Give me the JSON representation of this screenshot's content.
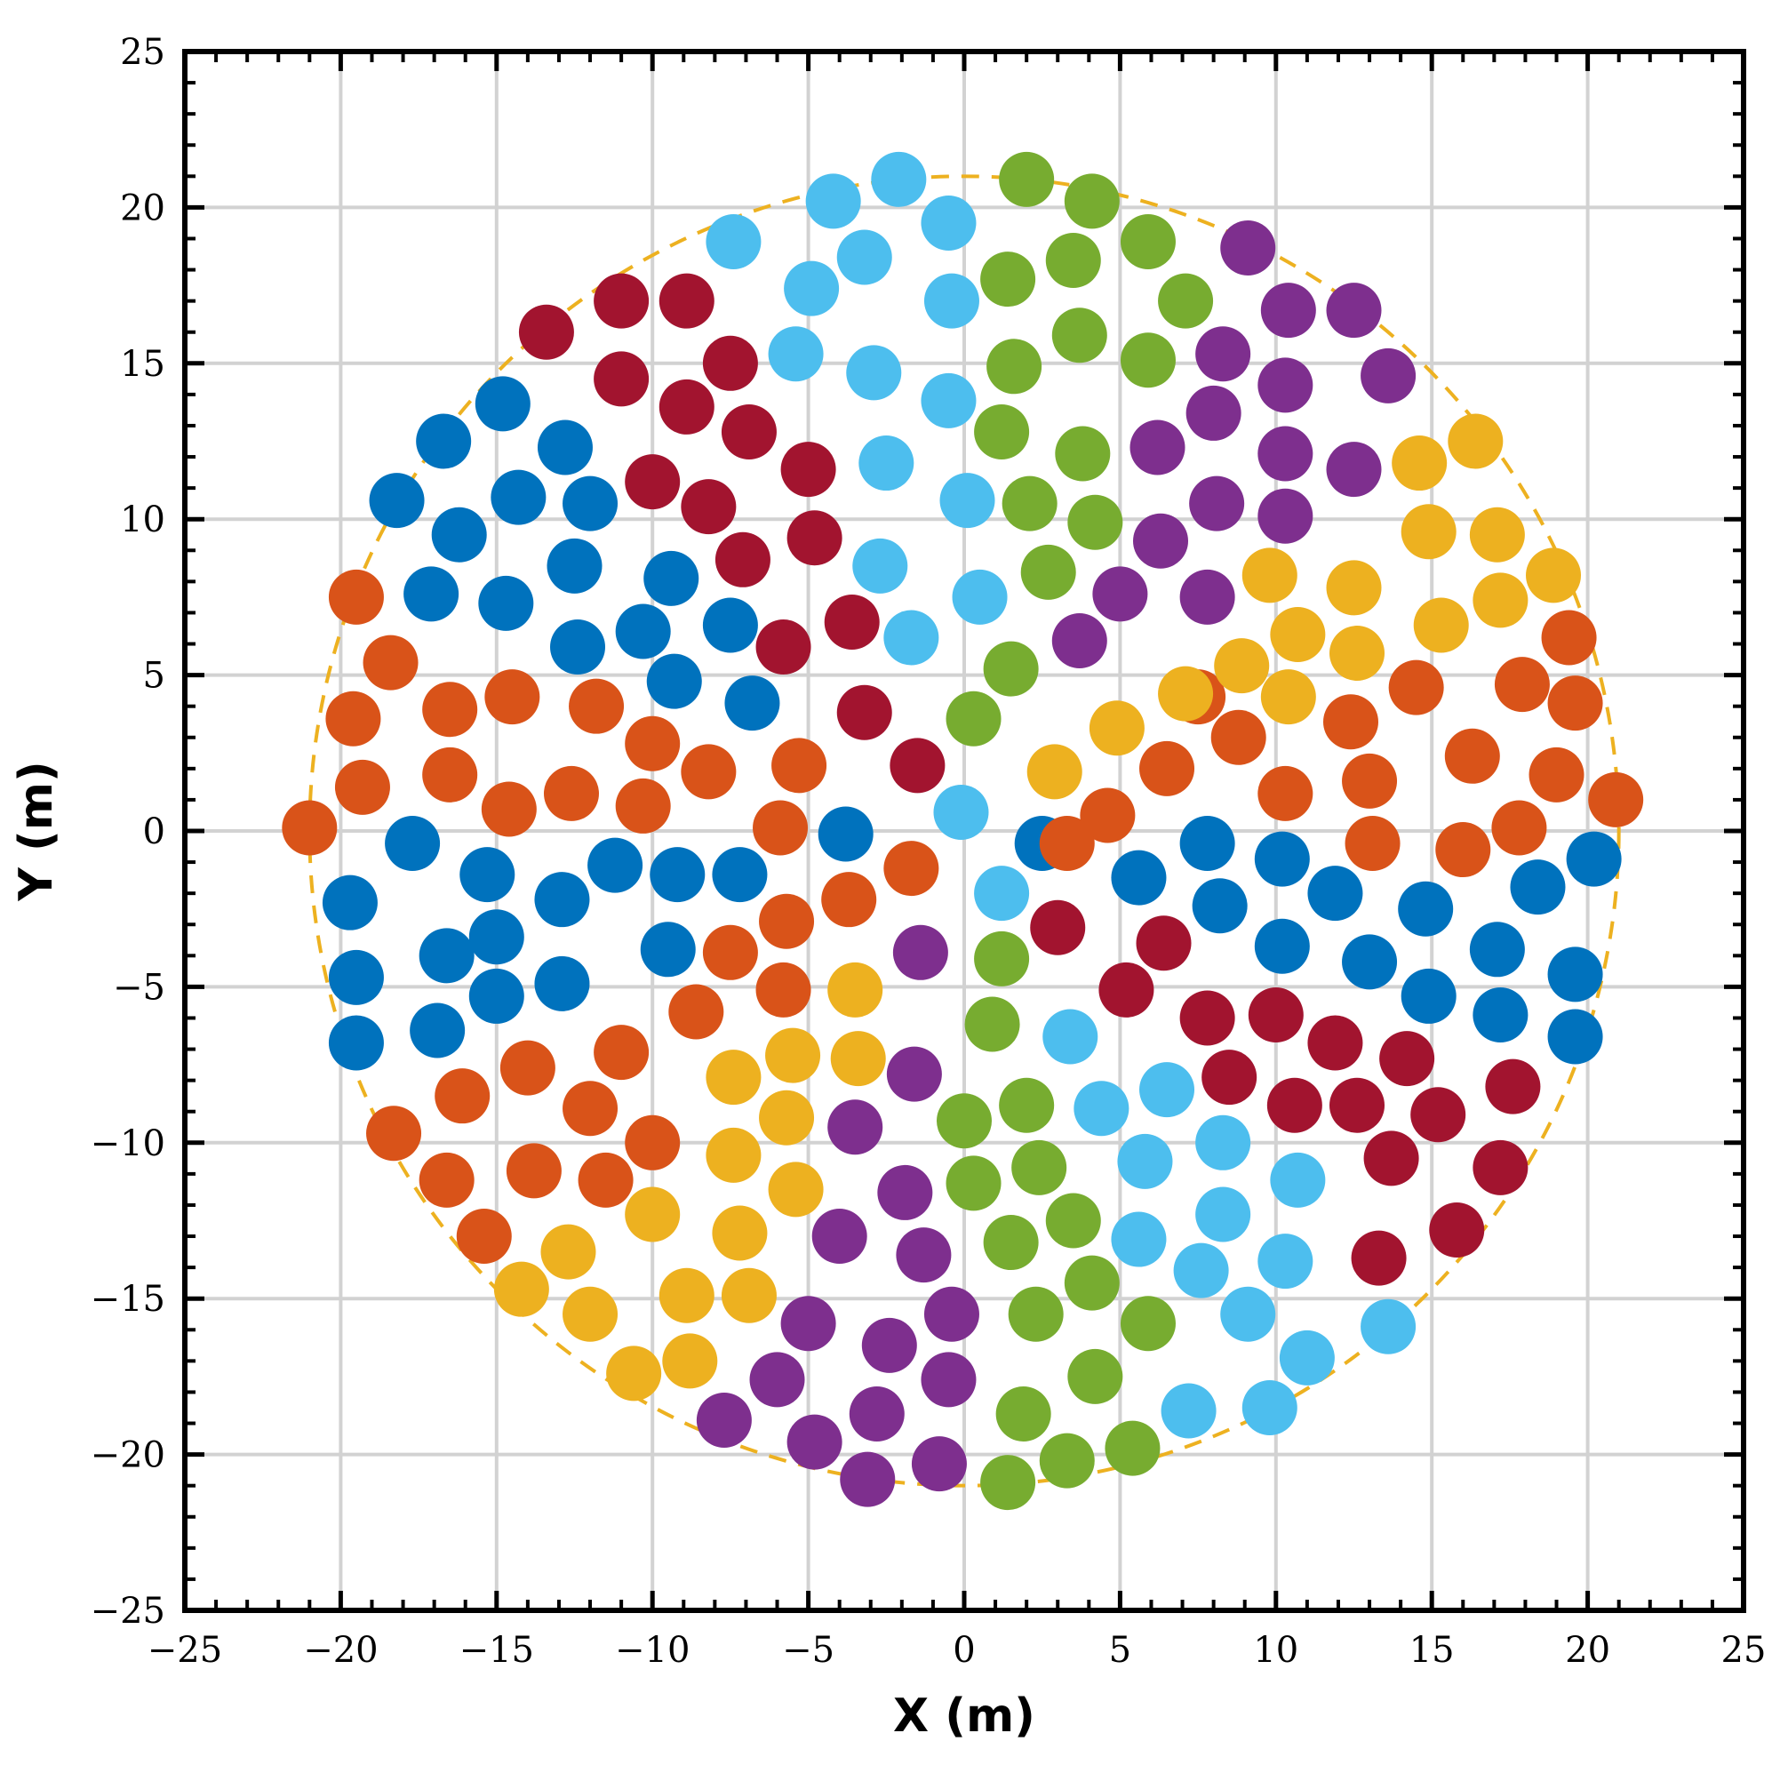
{
  "chart_data": {
    "type": "scatter",
    "title": "",
    "xlabel": "X (m)",
    "ylabel": "Y (m)",
    "xlim": [
      -25,
      25
    ],
    "ylim": [
      -25,
      25
    ],
    "xticks": [
      -25,
      -20,
      -15,
      -10,
      -5,
      0,
      5,
      10,
      15,
      20,
      25
    ],
    "yticks": [
      -25,
      -20,
      -15,
      -10,
      -5,
      0,
      5,
      10,
      15,
      20,
      25
    ],
    "grid": true,
    "legend": "none",
    "boundary": {
      "shape": "circle",
      "center": [
        0,
        0
      ],
      "radius": 21,
      "style": "dashed",
      "color": "#EDB120"
    },
    "series": [
      {
        "color": "#0072BD",
        "points": [
          [
            -18.2,
            10.6
          ],
          [
            -16.7,
            12.5
          ],
          [
            -14.8,
            13.7
          ],
          [
            -12.8,
            12.3
          ],
          [
            -16.2,
            9.5
          ],
          [
            -14.3,
            10.7
          ],
          [
            -12.0,
            10.5
          ],
          [
            -17.1,
            7.6
          ],
          [
            -14.7,
            7.3
          ],
          [
            -12.5,
            8.5
          ],
          [
            -9.4,
            8.1
          ],
          [
            -12.4,
            5.9
          ],
          [
            -10.3,
            6.4
          ],
          [
            -7.5,
            6.6
          ],
          [
            -9.3,
            4.8
          ],
          [
            -6.8,
            4.1
          ],
          [
            -17.7,
            -0.4
          ],
          [
            -15.3,
            -1.4
          ],
          [
            -11.2,
            -1.1
          ],
          [
            -9.2,
            -1.4
          ],
          [
            -7.2,
            -1.4
          ],
          [
            -3.8,
            -0.1
          ],
          [
            -19.7,
            -2.3
          ],
          [
            -15.0,
            -3.4
          ],
          [
            -12.9,
            -2.2
          ],
          [
            -19.5,
            -4.7
          ],
          [
            -16.6,
            -4.0
          ],
          [
            -12.9,
            -4.9
          ],
          [
            -9.5,
            -3.8
          ],
          [
            -19.5,
            -6.8
          ],
          [
            -16.9,
            -6.4
          ],
          [
            -15.0,
            -5.3
          ],
          [
            2.5,
            -0.4
          ],
          [
            5.6,
            -1.5
          ],
          [
            7.8,
            -0.4
          ],
          [
            10.2,
            -0.9
          ],
          [
            8.2,
            -2.4
          ],
          [
            11.9,
            -2.0
          ],
          [
            10.2,
            -3.7
          ],
          [
            13.0,
            -4.2
          ],
          [
            14.8,
            -2.5
          ],
          [
            14.9,
            -5.3
          ],
          [
            17.1,
            -3.8
          ],
          [
            18.4,
            -1.8
          ],
          [
            17.2,
            -5.9
          ],
          [
            19.6,
            -4.6
          ],
          [
            20.2,
            -0.9
          ],
          [
            19.6,
            -6.6
          ]
        ]
      },
      {
        "color": "#D95319",
        "points": [
          [
            -21.0,
            0.1
          ],
          [
            -19.5,
            7.5
          ],
          [
            -18.4,
            5.4
          ],
          [
            -19.6,
            3.6
          ],
          [
            -19.3,
            1.4
          ],
          [
            -16.5,
            3.9
          ],
          [
            -16.5,
            1.8
          ],
          [
            -14.5,
            4.3
          ],
          [
            -14.6,
            0.7
          ],
          [
            -12.6,
            1.2
          ],
          [
            -11.8,
            4.0
          ],
          [
            -10.3,
            0.8
          ],
          [
            -10.0,
            2.8
          ],
          [
            -8.2,
            1.9
          ],
          [
            -5.3,
            2.1
          ],
          [
            -5.9,
            0.1
          ],
          [
            -3.7,
            -2.2
          ],
          [
            -1.7,
            -1.2
          ],
          [
            -5.7,
            -2.9
          ],
          [
            -7.5,
            -3.9
          ],
          [
            -5.8,
            -5.1
          ],
          [
            -8.6,
            -5.8
          ],
          [
            -11.0,
            -7.1
          ],
          [
            -14.0,
            -7.6
          ],
          [
            -16.1,
            -8.5
          ],
          [
            -12.0,
            -8.9
          ],
          [
            -18.3,
            -9.7
          ],
          [
            -16.6,
            -11.2
          ],
          [
            -13.8,
            -10.9
          ],
          [
            -11.5,
            -11.2
          ],
          [
            -10.0,
            -10.0
          ],
          [
            -15.4,
            -13.0
          ],
          [
            4.6,
            0.5
          ],
          [
            3.3,
            -0.4
          ],
          [
            6.5,
            2.0
          ],
          [
            7.5,
            4.3
          ],
          [
            8.8,
            3.0
          ],
          [
            10.3,
            1.2
          ],
          [
            12.4,
            3.5
          ],
          [
            13.0,
            1.6
          ],
          [
            13.1,
            -0.4
          ],
          [
            14.5,
            4.6
          ],
          [
            16.3,
            2.4
          ],
          [
            16.0,
            -0.6
          ],
          [
            17.9,
            4.7
          ],
          [
            19.4,
            6.2
          ],
          [
            19.6,
            4.1
          ],
          [
            19.0,
            1.8
          ],
          [
            17.8,
            0.1
          ],
          [
            20.9,
            1.0
          ]
        ]
      },
      {
        "color": "#EDB120",
        "points": [
          [
            -3.5,
            -5.1
          ],
          [
            -5.5,
            -7.2
          ],
          [
            -3.4,
            -7.3
          ],
          [
            -7.4,
            -7.9
          ],
          [
            -5.7,
            -9.2
          ],
          [
            -7.4,
            -10.4
          ],
          [
            -5.4,
            -11.5
          ],
          [
            -10.0,
            -12.3
          ],
          [
            -7.2,
            -12.9
          ],
          [
            -12.7,
            -13.5
          ],
          [
            -14.2,
            -14.7
          ],
          [
            -8.9,
            -14.9
          ],
          [
            -6.9,
            -14.9
          ],
          [
            -12.0,
            -15.5
          ],
          [
            -8.8,
            -17.0
          ],
          [
            -10.6,
            -17.4
          ],
          [
            2.9,
            1.9
          ],
          [
            4.9,
            3.3
          ],
          [
            7.1,
            4.4
          ],
          [
            8.9,
            5.3
          ],
          [
            9.8,
            8.2
          ],
          [
            10.7,
            6.3
          ],
          [
            10.4,
            4.3
          ],
          [
            12.5,
            7.8
          ],
          [
            12.6,
            5.7
          ],
          [
            14.6,
            11.8
          ],
          [
            14.9,
            9.6
          ],
          [
            15.3,
            6.6
          ],
          [
            16.4,
            12.5
          ],
          [
            17.1,
            9.5
          ],
          [
            17.2,
            7.4
          ],
          [
            18.9,
            8.2
          ]
        ]
      },
      {
        "color": "#7E2F8E",
        "points": [
          [
            9.1,
            18.7
          ],
          [
            10.4,
            16.7
          ],
          [
            12.5,
            16.7
          ],
          [
            8.3,
            15.3
          ],
          [
            10.3,
            14.3
          ],
          [
            13.6,
            14.6
          ],
          [
            8.0,
            13.4
          ],
          [
            6.2,
            12.3
          ],
          [
            10.3,
            12.1
          ],
          [
            12.5,
            11.6
          ],
          [
            8.1,
            10.5
          ],
          [
            10.3,
            10.1
          ],
          [
            6.3,
            9.3
          ],
          [
            5.0,
            7.6
          ],
          [
            7.8,
            7.5
          ],
          [
            3.7,
            6.1
          ],
          [
            -1.4,
            -3.9
          ],
          [
            -1.6,
            -7.8
          ],
          [
            -3.5,
            -9.5
          ],
          [
            -1.9,
            -11.6
          ],
          [
            -4.0,
            -13.0
          ],
          [
            -1.3,
            -13.6
          ],
          [
            -0.4,
            -15.5
          ],
          [
            -5.0,
            -15.8
          ],
          [
            -2.4,
            -16.5
          ],
          [
            -6.0,
            -17.6
          ],
          [
            -0.5,
            -17.6
          ],
          [
            -7.7,
            -18.9
          ],
          [
            -2.8,
            -18.7
          ],
          [
            -4.8,
            -19.6
          ],
          [
            -3.1,
            -20.8
          ],
          [
            -0.8,
            -20.3
          ]
        ]
      },
      {
        "color": "#77AC30",
        "points": [
          [
            2.0,
            20.9
          ],
          [
            4.1,
            20.2
          ],
          [
            5.9,
            18.9
          ],
          [
            1.4,
            17.7
          ],
          [
            3.5,
            18.3
          ],
          [
            7.1,
            17.0
          ],
          [
            3.7,
            15.9
          ],
          [
            1.6,
            14.9
          ],
          [
            5.9,
            15.1
          ],
          [
            1.2,
            12.8
          ],
          [
            3.8,
            12.1
          ],
          [
            2.1,
            10.5
          ],
          [
            4.2,
            9.9
          ],
          [
            2.7,
            8.3
          ],
          [
            1.5,
            5.2
          ],
          [
            0.3,
            3.6
          ],
          [
            1.2,
            -4.1
          ],
          [
            0.9,
            -6.2
          ],
          [
            2.0,
            -8.8
          ],
          [
            0.0,
            -9.3
          ],
          [
            2.4,
            -10.8
          ],
          [
            0.3,
            -11.3
          ],
          [
            1.5,
            -13.2
          ],
          [
            3.5,
            -12.5
          ],
          [
            4.1,
            -14.5
          ],
          [
            2.3,
            -15.5
          ],
          [
            5.9,
            -15.8
          ],
          [
            4.2,
            -17.5
          ],
          [
            1.9,
            -18.7
          ],
          [
            3.3,
            -20.2
          ],
          [
            5.4,
            -19.8
          ],
          [
            1.4,
            -20.9
          ]
        ]
      },
      {
        "color": "#4DBEEE",
        "points": [
          [
            -2.1,
            20.9
          ],
          [
            -4.2,
            20.2
          ],
          [
            -0.5,
            19.5
          ],
          [
            -7.4,
            18.9
          ],
          [
            -3.2,
            18.4
          ],
          [
            -4.9,
            17.4
          ],
          [
            -0.4,
            17.0
          ],
          [
            -5.4,
            15.3
          ],
          [
            -2.9,
            14.7
          ],
          [
            -0.5,
            13.8
          ],
          [
            -2.5,
            11.8
          ],
          [
            0.1,
            10.6
          ],
          [
            -2.7,
            8.5
          ],
          [
            0.5,
            7.5
          ],
          [
            -1.7,
            6.2
          ],
          [
            -0.1,
            0.6
          ],
          [
            1.2,
            -2.0
          ],
          [
            3.4,
            -6.6
          ],
          [
            4.4,
            -8.9
          ],
          [
            6.5,
            -8.3
          ],
          [
            5.8,
            -10.6
          ],
          [
            8.3,
            -10.0
          ],
          [
            10.7,
            -11.2
          ],
          [
            5.6,
            -13.1
          ],
          [
            8.3,
            -12.3
          ],
          [
            7.6,
            -14.1
          ],
          [
            10.3,
            -13.8
          ],
          [
            9.1,
            -15.5
          ],
          [
            13.6,
            -15.9
          ],
          [
            11.0,
            -16.9
          ],
          [
            7.2,
            -18.6
          ],
          [
            9.8,
            -18.5
          ]
        ]
      },
      {
        "color": "#A2142F",
        "points": [
          [
            -13.4,
            16.0
          ],
          [
            -11.0,
            17.0
          ],
          [
            -8.9,
            17.0
          ],
          [
            -11.0,
            14.5
          ],
          [
            -8.9,
            13.6
          ],
          [
            -7.5,
            15.0
          ],
          [
            -6.9,
            12.8
          ],
          [
            -10.0,
            11.2
          ],
          [
            -8.2,
            10.4
          ],
          [
            -5.0,
            11.6
          ],
          [
            -7.1,
            8.7
          ],
          [
            -4.8,
            9.4
          ],
          [
            -3.6,
            6.7
          ],
          [
            -5.8,
            5.9
          ],
          [
            -3.2,
            3.8
          ],
          [
            -1.5,
            2.1
          ],
          [
            3.0,
            -3.1
          ],
          [
            5.2,
            -5.1
          ],
          [
            6.4,
            -3.6
          ],
          [
            7.8,
            -6.0
          ],
          [
            10.0,
            -5.9
          ],
          [
            8.5,
            -7.9
          ],
          [
            11.9,
            -6.8
          ],
          [
            10.6,
            -8.8
          ],
          [
            12.6,
            -8.8
          ],
          [
            14.2,
            -7.3
          ],
          [
            15.2,
            -9.1
          ],
          [
            17.6,
            -8.2
          ],
          [
            13.7,
            -10.5
          ],
          [
            17.2,
            -10.8
          ],
          [
            15.8,
            -12.8
          ],
          [
            13.3,
            -13.7
          ]
        ]
      }
    ]
  }
}
